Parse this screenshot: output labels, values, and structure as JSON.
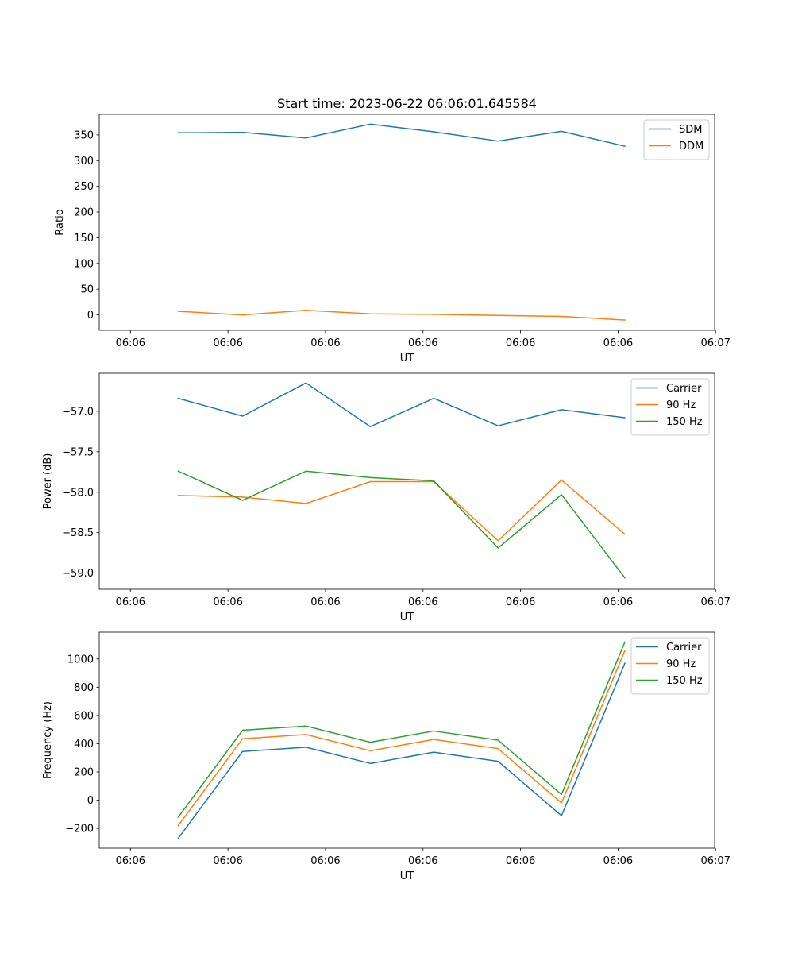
{
  "title": "Start time: 2023-06-22 06:06:01.645584",
  "chart_data": [
    {
      "type": "line",
      "title": "Start time: 2023-06-22 06:06:01.645584",
      "xlabel": "UT",
      "ylabel": "Ratio",
      "xlim": [
        -0.32,
        5.99
      ],
      "xticks": [
        0,
        1,
        2,
        3,
        4,
        5,
        6
      ],
      "xticklabels": [
        "06:06",
        "06:06",
        "06:06",
        "06:06",
        "06:06",
        "06:06",
        "06:07"
      ],
      "ylim": [
        -30,
        390
      ],
      "yticks": [
        0,
        50,
        100,
        150,
        200,
        250,
        300,
        350
      ],
      "yticklabels": [
        "0",
        "50",
        "100",
        "150",
        "200",
        "250",
        "300",
        "350"
      ],
      "x": [
        0.49,
        1.15,
        1.8,
        2.46,
        3.11,
        3.77,
        4.42,
        5.07
      ],
      "series": [
        {
          "name": "SDM",
          "color": "#1f77b4",
          "values": [
            354,
            355,
            344,
            371,
            356,
            338,
            357,
            328
          ]
        },
        {
          "name": "DDM",
          "color": "#ff7f0e",
          "values": [
            7,
            0,
            9,
            2,
            1,
            -1,
            -3,
            -10
          ]
        }
      ],
      "legend": "upper right",
      "grid": false
    },
    {
      "type": "line",
      "title": "",
      "xlabel": "UT",
      "ylabel": "Power (dB)",
      "xlim": [
        -0.32,
        5.99
      ],
      "xticks": [
        0,
        1,
        2,
        3,
        4,
        5,
        6
      ],
      "xticklabels": [
        "06:06",
        "06:06",
        "06:06",
        "06:06",
        "06:06",
        "06:06",
        "06:07"
      ],
      "ylim": [
        -59.2,
        -56.53
      ],
      "yticks": [
        -59.0,
        -58.5,
        -58.0,
        -57.5,
        -57.0
      ],
      "yticklabels": [
        "−59.0",
        "−58.5",
        "−58.0",
        "−57.5",
        "−57.0"
      ],
      "x": [
        0.49,
        1.15,
        1.8,
        2.46,
        3.11,
        3.77,
        4.42,
        5.07
      ],
      "series": [
        {
          "name": "Carrier",
          "color": "#1f77b4",
          "values": [
            -56.84,
            -57.06,
            -56.65,
            -57.19,
            -56.84,
            -57.18,
            -56.98,
            -57.08
          ]
        },
        {
          "name": "90 Hz",
          "color": "#ff7f0e",
          "values": [
            -58.04,
            -58.06,
            -58.14,
            -57.87,
            -57.87,
            -58.6,
            -57.85,
            -58.52
          ]
        },
        {
          "name": "150 Hz",
          "color": "#2ca02c",
          "values": [
            -57.74,
            -58.1,
            -57.74,
            -57.82,
            -57.86,
            -58.69,
            -58.03,
            -59.06
          ]
        }
      ],
      "legend": "upper right",
      "grid": false
    },
    {
      "type": "line",
      "title": "",
      "xlabel": "UT",
      "ylabel": "Frequency (Hz)",
      "xlim": [
        -0.32,
        5.99
      ],
      "xticks": [
        0,
        1,
        2,
        3,
        4,
        5,
        6
      ],
      "xticklabels": [
        "06:06",
        "06:06",
        "06:06",
        "06:06",
        "06:06",
        "06:06",
        "06:07"
      ],
      "ylim": [
        -340,
        1190
      ],
      "yticks": [
        -200,
        0,
        200,
        400,
        600,
        800,
        1000
      ],
      "yticklabels": [
        "−200",
        "0",
        "200",
        "400",
        "600",
        "800",
        "1000"
      ],
      "x": [
        0.49,
        1.15,
        1.8,
        2.46,
        3.11,
        3.77,
        4.42,
        5.07
      ],
      "series": [
        {
          "name": "Carrier",
          "color": "#1f77b4",
          "values": [
            -270,
            345,
            375,
            260,
            340,
            275,
            -110,
            970
          ]
        },
        {
          "name": "90 Hz",
          "color": "#ff7f0e",
          "values": [
            -180,
            435,
            465,
            350,
            430,
            365,
            -20,
            1060
          ]
        },
        {
          "name": "150 Hz",
          "color": "#2ca02c",
          "values": [
            -120,
            495,
            525,
            410,
            490,
            425,
            40,
            1120
          ]
        }
      ],
      "legend": "upper right",
      "grid": false
    }
  ]
}
